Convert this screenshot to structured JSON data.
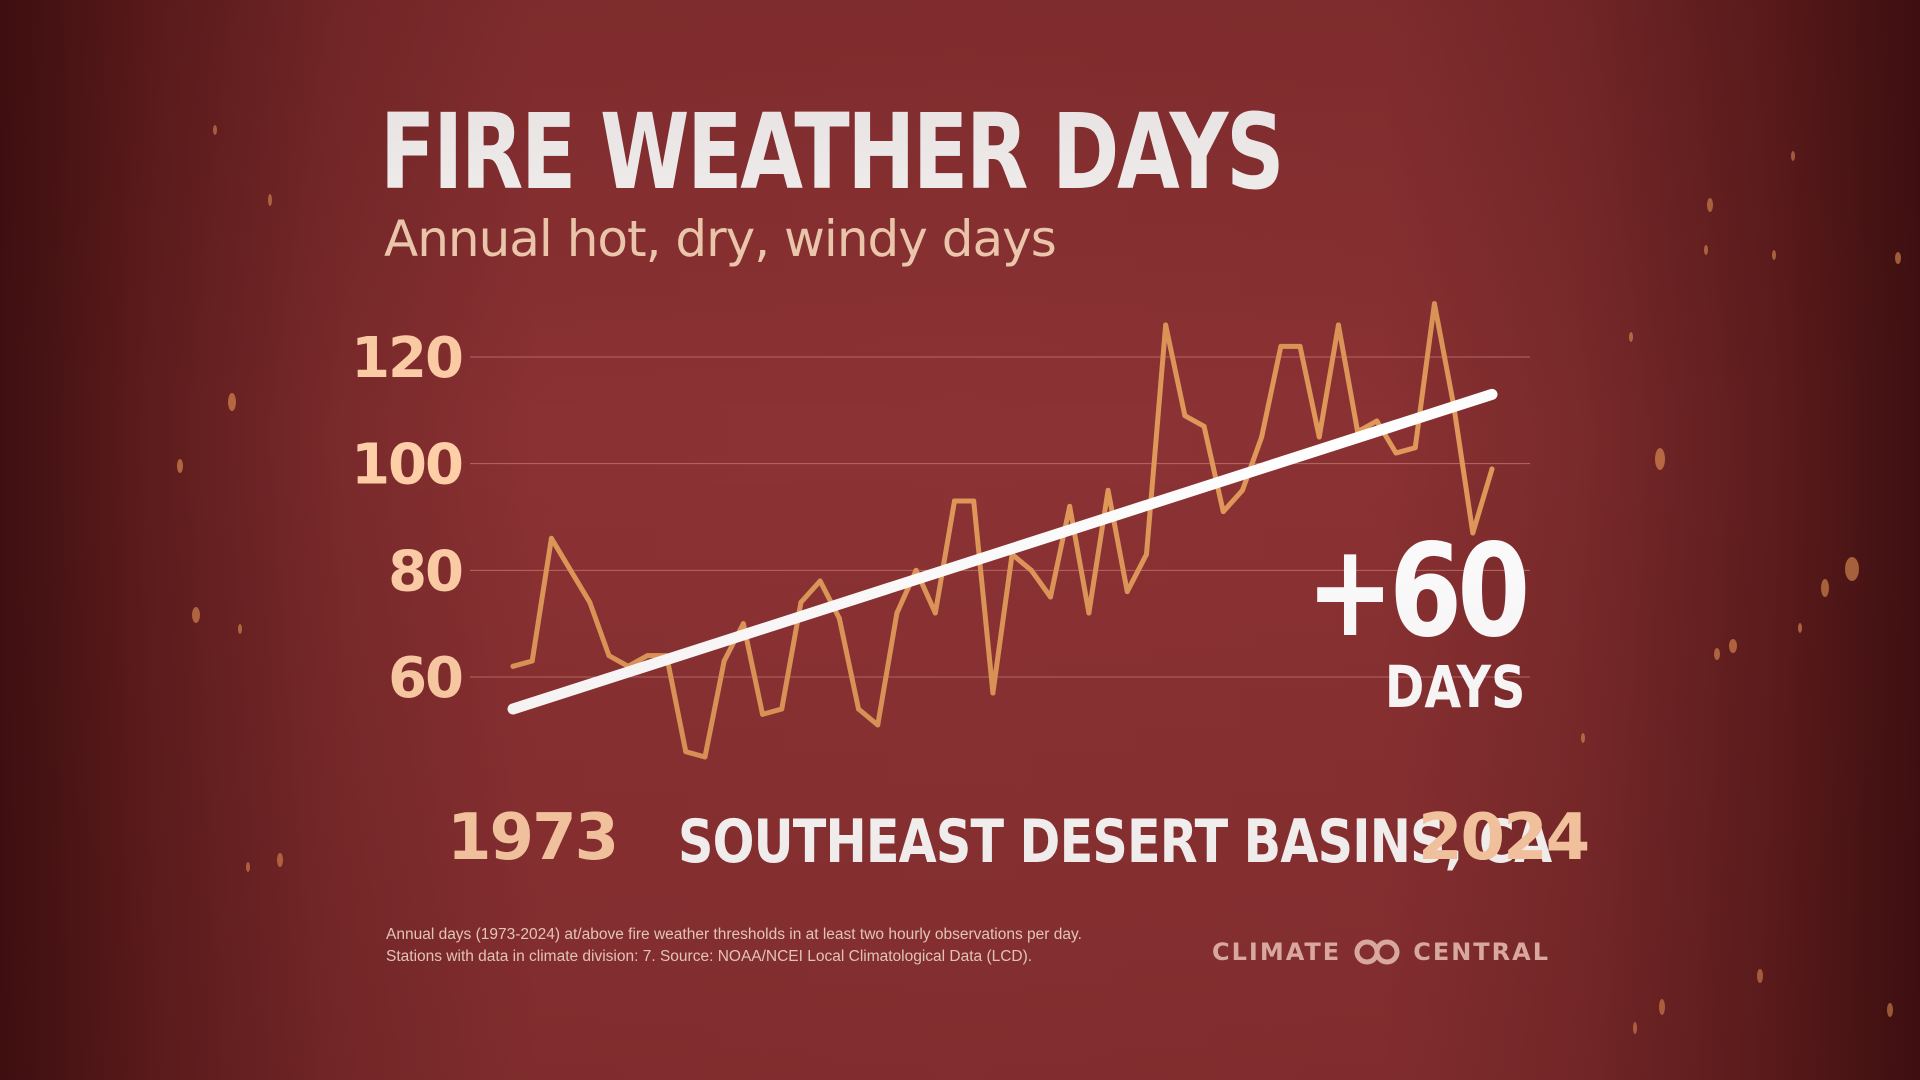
{
  "header": {
    "title": "FIRE WEATHER DAYS",
    "subtitle": "Annual hot, dry, windy days"
  },
  "region": "SOUTHEAST DESERT BASINS, CA",
  "start_year_label": "1973",
  "end_year_label": "2024",
  "change": {
    "value": "+60",
    "unit": "DAYS"
  },
  "footnote": {
    "line1": "Annual days (1973-2024) at/above fire weather thresholds in at least two hourly observations per day.",
    "line2": "Stations with data in climate division: 7. Source: NOAA/NCEI Local Climatological Data (LCD)."
  },
  "logo": {
    "left": "CLIMATE",
    "right": "CENTRAL"
  },
  "colors": {
    "background": "#8b3234",
    "line": "#e0985a",
    "trend": "#ffffff",
    "tick_labels": "#ffcfa8",
    "gridline": "#b86a66"
  },
  "chart_data": {
    "type": "line",
    "title": "FIRE WEATHER DAYS",
    "subtitle": "Annual hot, dry, windy days",
    "xlabel": "",
    "ylabel": "",
    "grid": true,
    "x": [
      1973,
      1974,
      1975,
      1976,
      1977,
      1978,
      1979,
      1980,
      1981,
      1982,
      1983,
      1984,
      1985,
      1986,
      1987,
      1988,
      1989,
      1990,
      1991,
      1992,
      1993,
      1994,
      1995,
      1996,
      1997,
      1998,
      1999,
      2000,
      2001,
      2002,
      2003,
      2004,
      2005,
      2006,
      2007,
      2008,
      2009,
      2010,
      2011,
      2012,
      2013,
      2014,
      2015,
      2016,
      2017,
      2018,
      2019,
      2020,
      2021,
      2022,
      2023,
      2024
    ],
    "ylim": [
      40,
      130
    ],
    "yticks": [
      60,
      80,
      100,
      120
    ],
    "series": [
      {
        "values": [
          62,
          63,
          86,
          80,
          74,
          64,
          62,
          64,
          64,
          46,
          45,
          63,
          70,
          53,
          54,
          74,
          78,
          71,
          54,
          51,
          72,
          80,
          72,
          93,
          93,
          57,
          83,
          80,
          75,
          92,
          72,
          95,
          76,
          83,
          126,
          109,
          107,
          91,
          95,
          105,
          122,
          122,
          105,
          126,
          106,
          108,
          102,
          103,
          130,
          111,
          87,
          99
        ]
      }
    ],
    "trend": {
      "start": [
        1973,
        54
      ],
      "end": [
        2024,
        113
      ]
    }
  }
}
